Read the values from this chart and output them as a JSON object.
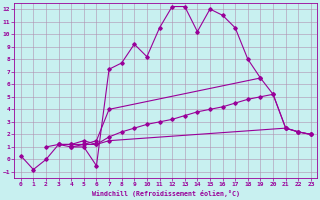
{
  "xlabel": "Windchill (Refroidissement éolien,°C)",
  "background_color": "#c8f0f0",
  "grid_color": "#b090b0",
  "line_color": "#990099",
  "xlim": [
    -0.5,
    23.5
  ],
  "ylim": [
    -1.5,
    12.5
  ],
  "xticks": [
    0,
    1,
    2,
    3,
    4,
    5,
    6,
    7,
    8,
    9,
    10,
    11,
    12,
    13,
    14,
    15,
    16,
    17,
    18,
    19,
    20,
    21,
    22,
    23
  ],
  "yticks": [
    -1,
    0,
    1,
    2,
    3,
    4,
    5,
    6,
    7,
    8,
    9,
    10,
    11,
    12
  ],
  "series": [
    {
      "x": [
        0,
        1,
        2,
        3,
        4,
        5,
        6,
        7,
        8,
        9,
        10,
        11,
        12,
        13,
        14,
        15,
        16,
        17,
        18,
        19
      ],
      "y": [
        0.3,
        -0.8,
        0.0,
        1.2,
        1.0,
        1.0,
        -0.5,
        7.2,
        7.7,
        9.2,
        8.2,
        10.5,
        12.2,
        12.2,
        10.2,
        12.0,
        11.5,
        10.5,
        8.0,
        6.5
      ]
    },
    {
      "x": [
        3,
        4,
        5,
        6,
        7,
        19,
        20,
        21,
        22,
        23
      ],
      "y": [
        1.2,
        1.2,
        1.2,
        1.5,
        4.0,
        6.5,
        5.2,
        2.5,
        2.2,
        2.0
      ]
    },
    {
      "x": [
        4,
        5,
        6,
        7,
        21,
        22,
        23
      ],
      "y": [
        1.0,
        1.2,
        1.2,
        1.5,
        2.5,
        2.2,
        2.0
      ]
    },
    {
      "x": [
        2,
        3,
        4,
        5,
        6,
        7,
        8,
        9,
        10,
        11,
        12,
        13,
        14,
        15,
        16,
        17,
        18,
        19,
        20,
        21,
        22,
        23
      ],
      "y": [
        1.0,
        1.2,
        1.2,
        1.5,
        1.2,
        1.8,
        2.2,
        2.5,
        2.8,
        3.0,
        3.2,
        3.5,
        3.8,
        4.0,
        4.2,
        4.5,
        4.8,
        5.0,
        5.2,
        2.5,
        2.2,
        2.0
      ]
    }
  ]
}
